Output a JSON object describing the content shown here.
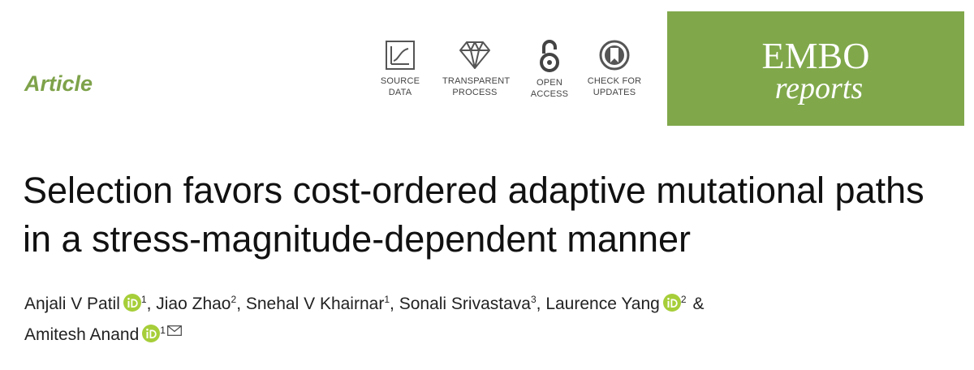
{
  "header": {
    "article_type": "Article",
    "badges": [
      "SOURCE DATA",
      "TRANSPARENT PROCESS",
      "OPEN ACCESS",
      "CHECK FOR UPDATES"
    ],
    "journal": {
      "name": "EMBO",
      "subname": "reports"
    }
  },
  "title": "Selection favors cost-ordered adaptive mutational paths in a stress-magnitude-dependent manner",
  "authors": [
    {
      "name": "Anjali V Patil",
      "orcid": true,
      "affiliation": "1",
      "separator": ","
    },
    {
      "name": "Jiao Zhao",
      "orcid": false,
      "affiliation": "2",
      "separator": ","
    },
    {
      "name": "Snehal V Khairnar",
      "orcid": false,
      "affiliation": "1",
      "separator": ","
    },
    {
      "name": "Sonali Srivastava",
      "orcid": false,
      "affiliation": "3",
      "separator": ","
    },
    {
      "name": "Laurence Yang",
      "orcid": true,
      "affiliation": "2",
      "separator": "&"
    },
    {
      "name": "Amitesh Anand",
      "orcid": true,
      "affiliation": "1",
      "corresponding": true
    }
  ]
}
